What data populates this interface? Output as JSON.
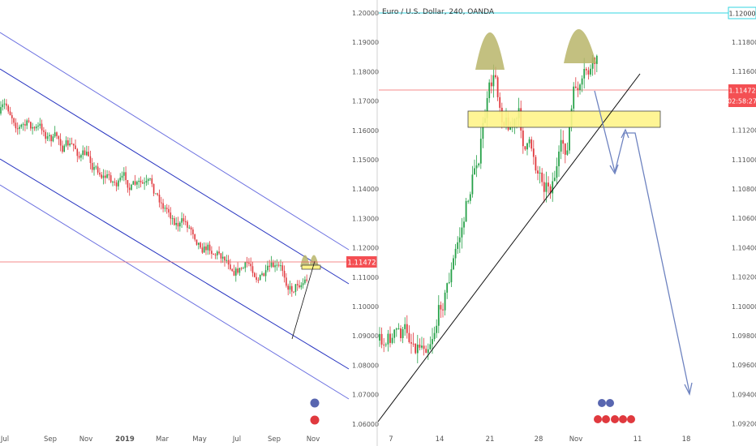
{
  "colors": {
    "up": "#26a148",
    "down": "#e0393e",
    "channel_inner": "#2633c0",
    "channel_outer": "#6a6fe0",
    "price_line": "#f06565",
    "price_box": "#f44f53",
    "trend": "#111111",
    "zone_fill": "#fff58a",
    "zone_stroke": "#333333",
    "shoulder_fill": "#b9b56a",
    "arrow": "#6e83c0",
    "resistance": "#33d6e0",
    "axis_text": "#555555",
    "divider": "#d0d0d0"
  },
  "left_chart": {
    "price_label": "1.11472",
    "x_ticks": [
      "Jul",
      "Sep",
      "Nov",
      "2019",
      "Mar",
      "May",
      "Jul",
      "Sep",
      "Nov"
    ],
    "y_ticks": [
      "1.20000",
      "1.19000",
      "1.18000",
      "1.17000",
      "1.16000",
      "1.15000",
      "1.14000",
      "1.13000",
      "1.12000",
      "1.11000",
      "1.10000",
      "1.09000",
      "1.08000",
      "1.07000",
      "1.06000"
    ]
  },
  "right_chart": {
    "legend": "Euro / U.S. Dollar, 240, OANDA",
    "price_label": "1.11472",
    "countdown": "02:58:27",
    "resistance_label": "1.12000",
    "x_ticks": [
      "7",
      "14",
      "21",
      "28",
      "Nov",
      "11",
      "18"
    ],
    "y_ticks": [
      "1.11800",
      "1.11600",
      "1.11400",
      "1.11200",
      "1.11000",
      "1.10800",
      "1.10600",
      "1.10400",
      "1.10200",
      "1.10000",
      "1.09800",
      "1.09600",
      "1.09400",
      "1.09200"
    ]
  },
  "chart_data": [
    {
      "type": "candlestick",
      "series": [
        {
          "values": "generated"
        }
      ],
      "ylim": [
        1.06,
        1.2
      ],
      "last_price": 1.11472,
      "trend_channel": "descending"
    },
    {
      "type": "candlestick",
      "ylim": [
        1.092,
        1.12
      ],
      "last_price": 1.11472,
      "resistance": 1.12,
      "support_zone": [
        1.112,
        1.113
      ],
      "pattern": "double top"
    }
  ]
}
